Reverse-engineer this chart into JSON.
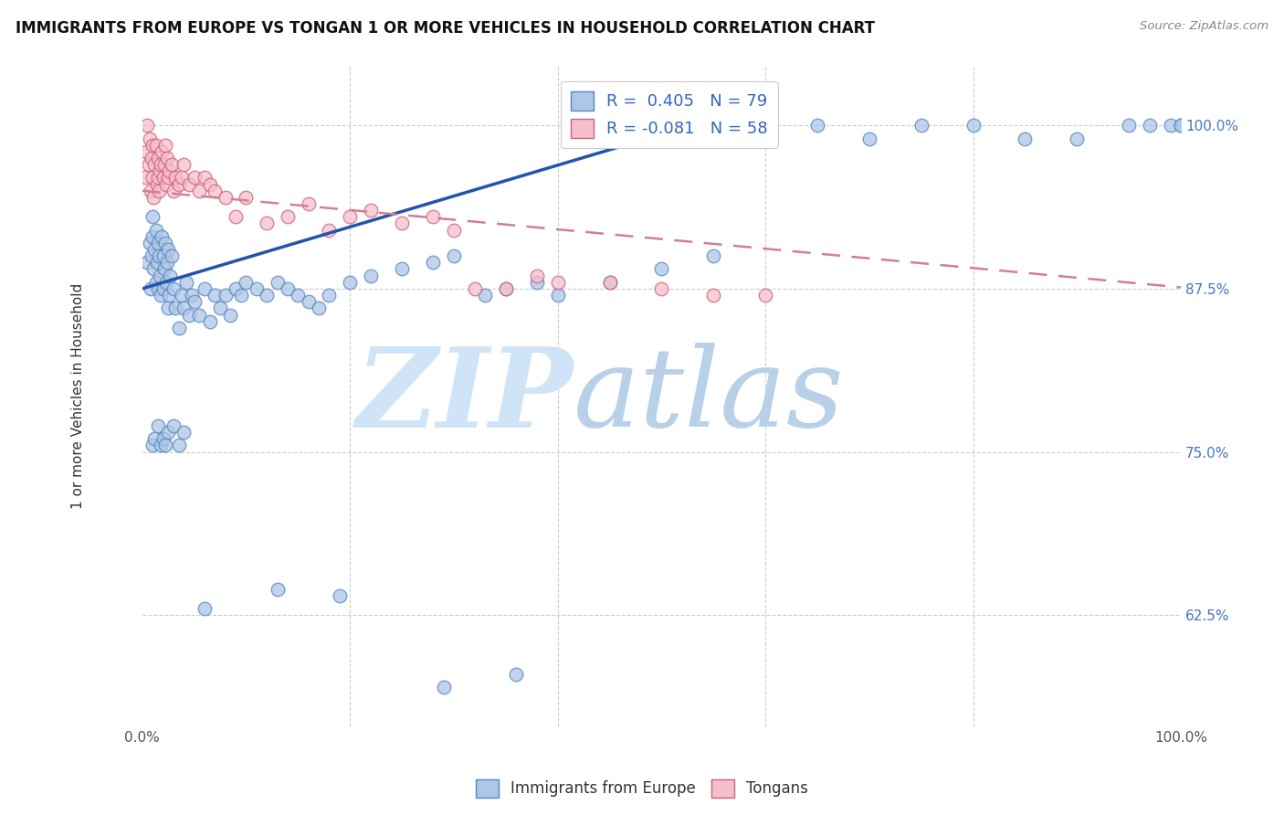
{
  "title": "IMMIGRANTS FROM EUROPE VS TONGAN 1 OR MORE VEHICLES IN HOUSEHOLD CORRELATION CHART",
  "source": "Source: ZipAtlas.com",
  "ylabel": "1 or more Vehicles in Household",
  "xlim": [
    0.0,
    1.0
  ],
  "ylim": [
    0.54,
    1.045
  ],
  "ytick_positions": [
    0.625,
    0.75,
    0.875,
    1.0
  ],
  "ytick_labels": [
    "62.5%",
    "75.0%",
    "87.5%",
    "100.0%"
  ],
  "blue_label": "Immigrants from Europe",
  "pink_label": "Tongans",
  "blue_R": 0.405,
  "blue_N": 79,
  "pink_R": -0.081,
  "pink_N": 58,
  "blue_color": "#aec6e8",
  "blue_edge_color": "#5588bb",
  "pink_color": "#f5bfcc",
  "pink_edge_color": "#d0607a",
  "blue_line_color": "#2255aa",
  "pink_line_color": "#d08090",
  "legend_box_blue": "#aec6e8",
  "legend_box_pink": "#f5bfcc",
  "legend_text_color": "#3366bb",
  "watermark_zip_color": "#d0e4f7",
  "watermark_atlas_color": "#b8d0e8",
  "blue_trend_x0": 0.0,
  "blue_trend_y0": 0.875,
  "blue_trend_x1": 0.55,
  "blue_trend_y1": 1.005,
  "pink_trend_x0": 0.0,
  "pink_trend_y0": 0.95,
  "pink_trend_x1": 1.0,
  "pink_trend_y1": 0.876,
  "blue_scatter_x": [
    0.005,
    0.007,
    0.008,
    0.009,
    0.01,
    0.01,
    0.011,
    0.012,
    0.013,
    0.013,
    0.014,
    0.015,
    0.015,
    0.016,
    0.017,
    0.018,
    0.019,
    0.02,
    0.02,
    0.021,
    0.022,
    0.023,
    0.024,
    0.025,
    0.025,
    0.026,
    0.027,
    0.028,
    0.03,
    0.032,
    0.035,
    0.038,
    0.04,
    0.042,
    0.045,
    0.048,
    0.05,
    0.055,
    0.06,
    0.065,
    0.07,
    0.075,
    0.08,
    0.085,
    0.09,
    0.095,
    0.1,
    0.11,
    0.12,
    0.13,
    0.14,
    0.15,
    0.16,
    0.17,
    0.18,
    0.2,
    0.22,
    0.25,
    0.28,
    0.3,
    0.33,
    0.35,
    0.38,
    0.4,
    0.45,
    0.5,
    0.55,
    0.6,
    0.65,
    0.7,
    0.75,
    0.8,
    0.85,
    0.9,
    0.95,
    0.97,
    0.99,
    1.0,
    1.0
  ],
  "blue_scatter_y": [
    0.895,
    0.91,
    0.875,
    0.9,
    0.915,
    0.93,
    0.89,
    0.905,
    0.88,
    0.92,
    0.895,
    0.875,
    0.91,
    0.9,
    0.885,
    0.87,
    0.915,
    0.9,
    0.875,
    0.89,
    0.91,
    0.88,
    0.895,
    0.86,
    0.905,
    0.87,
    0.885,
    0.9,
    0.875,
    0.86,
    0.845,
    0.87,
    0.86,
    0.88,
    0.855,
    0.87,
    0.865,
    0.855,
    0.875,
    0.85,
    0.87,
    0.86,
    0.87,
    0.855,
    0.875,
    0.87,
    0.88,
    0.875,
    0.87,
    0.88,
    0.875,
    0.87,
    0.865,
    0.86,
    0.87,
    0.88,
    0.885,
    0.89,
    0.895,
    0.9,
    0.87,
    0.875,
    0.88,
    0.87,
    0.88,
    0.89,
    0.9,
    0.99,
    1.0,
    0.99,
    1.0,
    1.0,
    0.99,
    0.99,
    1.0,
    1.0,
    1.0,
    1.0,
    1.0
  ],
  "blue_scatter_y_low": [
    0.755,
    0.76,
    0.77,
    0.755,
    0.76,
    0.755,
    0.765,
    0.77,
    0.755,
    0.765,
    0.63,
    0.645,
    0.64,
    0.57,
    0.58
  ],
  "blue_scatter_x_low": [
    0.01,
    0.012,
    0.015,
    0.018,
    0.02,
    0.022,
    0.025,
    0.03,
    0.035,
    0.04,
    0.06,
    0.13,
    0.19,
    0.29,
    0.36
  ],
  "pink_scatter_x": [
    0.003,
    0.004,
    0.005,
    0.006,
    0.007,
    0.008,
    0.009,
    0.01,
    0.01,
    0.011,
    0.012,
    0.013,
    0.014,
    0.015,
    0.015,
    0.016,
    0.017,
    0.018,
    0.019,
    0.02,
    0.021,
    0.022,
    0.023,
    0.024,
    0.025,
    0.026,
    0.028,
    0.03,
    0.032,
    0.035,
    0.038,
    0.04,
    0.045,
    0.05,
    0.055,
    0.06,
    0.065,
    0.07,
    0.08,
    0.09,
    0.1,
    0.12,
    0.14,
    0.16,
    0.18,
    0.2,
    0.22,
    0.25,
    0.28,
    0.3,
    0.32,
    0.35,
    0.38,
    0.4,
    0.45,
    0.5,
    0.55,
    0.6
  ],
  "pink_scatter_y": [
    0.96,
    0.98,
    1.0,
    0.97,
    0.99,
    0.95,
    0.975,
    0.96,
    0.985,
    0.945,
    0.97,
    0.985,
    0.955,
    0.96,
    0.975,
    0.95,
    0.965,
    0.97,
    0.98,
    0.96,
    0.97,
    0.985,
    0.955,
    0.975,
    0.96,
    0.965,
    0.97,
    0.95,
    0.96,
    0.955,
    0.96,
    0.97,
    0.955,
    0.96,
    0.95,
    0.96,
    0.955,
    0.95,
    0.945,
    0.93,
    0.945,
    0.925,
    0.93,
    0.94,
    0.92,
    0.93,
    0.935,
    0.925,
    0.93,
    0.92,
    0.875,
    0.875,
    0.885,
    0.88,
    0.88,
    0.875,
    0.87,
    0.87
  ]
}
